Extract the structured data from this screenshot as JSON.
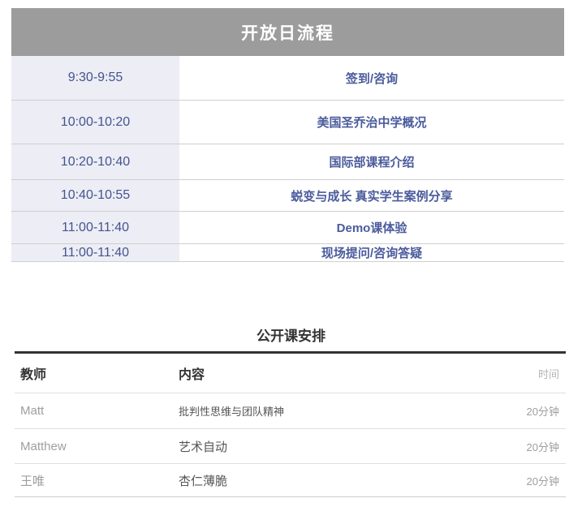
{
  "open_day": {
    "title": "开放日流程",
    "rows": [
      {
        "time": "9:30-9:55",
        "event": "签到/咨询"
      },
      {
        "time": "10:00-10:20",
        "event": "美国圣乔治中学概况"
      },
      {
        "time": "10:20-10:40",
        "event": "国际部课程介绍"
      },
      {
        "time": "10:40-10:55",
        "event": "蜕变与成长 真实学生案例分享"
      },
      {
        "time": "11:00-11:40",
        "event": "Demo课体验"
      },
      {
        "time": "11:00-11:40",
        "event": "现场提问/咨询答疑"
      }
    ]
  },
  "open_class": {
    "title": "公开课安排",
    "columns": {
      "teacher": "教师",
      "content": "内容",
      "time": "时间"
    },
    "rows": [
      {
        "teacher": "Matt",
        "content": "批判性思维与团队精神",
        "time": "20分钟"
      },
      {
        "teacher": "Matthew",
        "content": "艺术自动",
        "time": "20分钟"
      },
      {
        "teacher": "王唯",
        "content": "杏仁薄脆",
        "time": "20分钟"
      }
    ]
  },
  "colors": {
    "header_band_bg": "#9c9c9c",
    "header_band_text": "#ffffff",
    "time_column_bg": "#ecedf5",
    "schedule_time_text": "#44548f",
    "schedule_event_text": "#4a5b9c",
    "section_heading_text": "#333333",
    "muted_text": "#9e9e9e",
    "content_text": "#555555",
    "column_time_header_text": "#b5b5b5",
    "divider": "#cfcfcf",
    "thick_rule": "#333333"
  }
}
